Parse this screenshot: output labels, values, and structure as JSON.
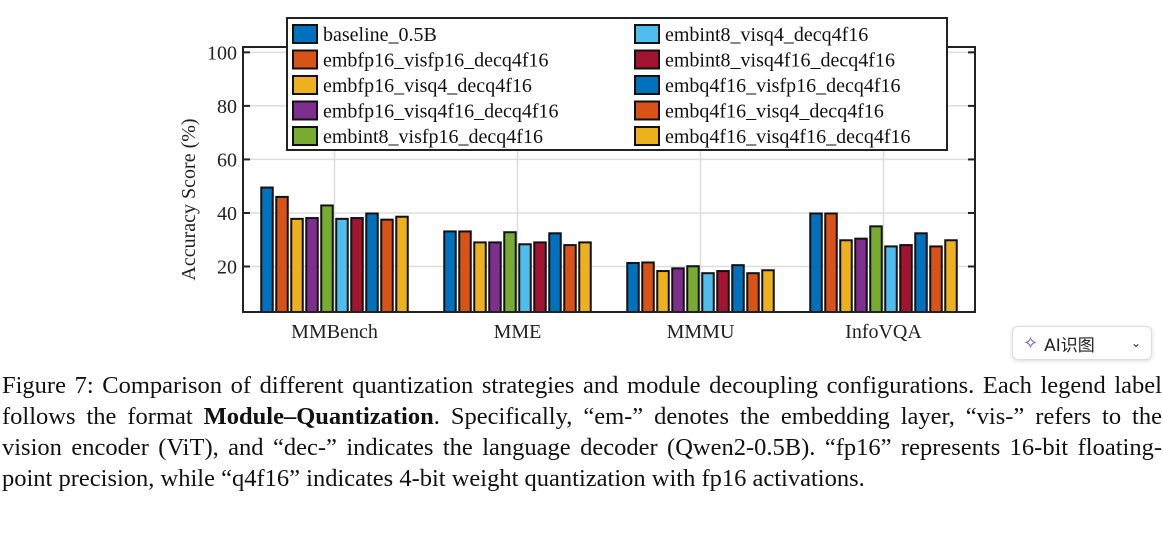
{
  "chart_data": {
    "type": "bar",
    "categories": [
      "MMBench",
      "MME",
      "MMMU",
      "InfoVQA"
    ],
    "ylabel": "Accuracy Score (%)",
    "xlabel": "",
    "ylim": [
      3,
      102
    ],
    "yticks": [
      20,
      40,
      60,
      80,
      100
    ],
    "grid": true,
    "legend_placement": "top",
    "series": [
      {
        "name": "baseline_0.5B",
        "color": "#0072BD",
        "values": [
          49.5,
          33.1,
          21.3,
          39.8
        ]
      },
      {
        "name": "embfp16_visfp16_decq4f16",
        "color": "#D95319",
        "values": [
          46.0,
          33.1,
          21.5,
          39.8
        ]
      },
      {
        "name": "embfp16_visq4_decq4f16",
        "color": "#EDB120",
        "values": [
          37.8,
          29.0,
          18.3,
          29.8
        ]
      },
      {
        "name": "embfp16_visq4f16_decq4f16",
        "color": "#7E2F8E",
        "values": [
          38.1,
          29.0,
          19.3,
          30.4
        ]
      },
      {
        "name": "embint8_visfp16_decq4f16",
        "color": "#77AC30",
        "values": [
          42.8,
          32.8,
          20.1,
          35.0
        ]
      },
      {
        "name": "embint8_visq4_decq4f16",
        "color": "#4DBEEE",
        "values": [
          37.8,
          28.3,
          17.5,
          27.5
        ]
      },
      {
        "name": "embint8_visq4f16_decq4f16",
        "color": "#A2142F",
        "values": [
          38.1,
          29.0,
          18.3,
          28.0
        ]
      },
      {
        "name": "embq4f16_visfp16_decq4f16",
        "color": "#0072BD",
        "values": [
          39.8,
          32.4,
          20.5,
          32.4
        ]
      },
      {
        "name": "embq4f16_visq4_decq4f16",
        "color": "#D95319",
        "values": [
          37.5,
          28.0,
          17.5,
          27.5
        ]
      },
      {
        "name": "embq4f16_visq4f16_decq4f16",
        "color": "#EDB120",
        "values": [
          38.6,
          29.0,
          18.6,
          29.8
        ]
      }
    ]
  },
  "caption": {
    "prefix": "Figure 7: Comparison of different quantization strategies and module decoupling configurations. Each legend label follows the format ",
    "bold": "Module–Quantization",
    "suffix": ". Specifically, “em-” denotes the embedding layer, “vis-” refers to the vision encoder (ViT), and “dec-” indicates the language decoder (Qwen2-0.5B). “fp16” represents 16-bit floating-point precision, while “q4f16” indicates 4-bit weight quantization with fp16 activations."
  },
  "overlay": {
    "ai_button": "AI识图",
    "icon": "sparkle-icon"
  }
}
